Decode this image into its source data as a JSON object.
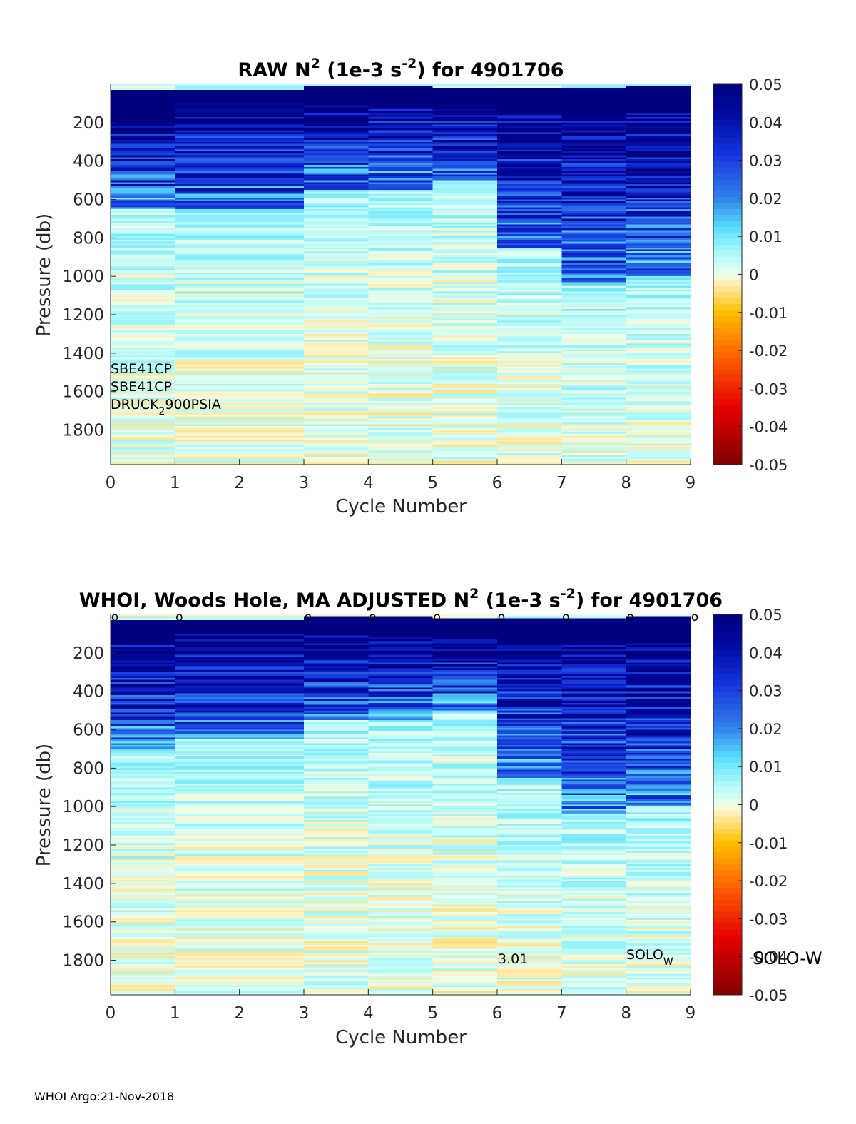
{
  "footer": "WHOI Argo:21-Nov-2018",
  "chart_data": [
    {
      "type": "heatmap",
      "title": {
        "pre": "RAW N",
        "sup1": "2",
        "mid": " (1e-3 s",
        "sup2": "-2",
        "post": ") for 4901706"
      },
      "xlabel": "Cycle Number",
      "ylabel": "Pressure (db)",
      "x_ticks": [
        "0",
        "1",
        "2",
        "3",
        "4",
        "5",
        "6",
        "7",
        "8",
        "9"
      ],
      "y_ticks": [
        "200",
        "400",
        "600",
        "800",
        "1000",
        "1200",
        "1400",
        "1600",
        "1800"
      ],
      "xlim": [
        0,
        9
      ],
      "ylim": [
        1980,
        0
      ],
      "colorbar": {
        "range": [
          -0.05,
          0.05
        ],
        "ticks": [
          "0.05",
          "0.04",
          "0.03",
          "0.02",
          "0.01",
          "0",
          "-0.01",
          "-0.02",
          "-0.03",
          "-0.04",
          "-0.05"
        ]
      },
      "column_edges": [
        0,
        1,
        3,
        4,
        5,
        6,
        7,
        8,
        9
      ],
      "columns": [
        {
          "cycle_start": 0,
          "cycle_end": 1,
          "top_p": 30,
          "mixed_layer_to_p": 150,
          "deep_strat_to_p": 650
        },
        {
          "cycle_start": 1,
          "cycle_end": 3,
          "top_p": 30,
          "mixed_layer_to_p": 100,
          "deep_strat_to_p": 650
        },
        {
          "cycle_start": 3,
          "cycle_end": 4,
          "top_p": 10,
          "mixed_layer_to_p": 110,
          "deep_strat_to_p": 550
        },
        {
          "cycle_start": 4,
          "cycle_end": 5,
          "top_p": 10,
          "mixed_layer_to_p": 110,
          "deep_strat_to_p": 550
        },
        {
          "cycle_start": 5,
          "cycle_end": 6,
          "top_p": 20,
          "mixed_layer_to_p": 130,
          "deep_strat_to_p": 500
        },
        {
          "cycle_start": 6,
          "cycle_end": 7,
          "top_p": 20,
          "mixed_layer_to_p": 150,
          "deep_strat_to_p": 850
        },
        {
          "cycle_start": 7,
          "cycle_end": 8,
          "top_p": 20,
          "mixed_layer_to_p": 160,
          "deep_strat_to_p": 1050
        },
        {
          "cycle_start": 8,
          "cycle_end": 9,
          "top_p": 10,
          "mixed_layer_to_p": 150,
          "deep_strat_to_p": 1000
        }
      ],
      "annotations": [
        {
          "text": "SBE41CP"
        },
        {
          "text": "SBE41CP"
        },
        {
          "text": "DRUCK",
          "sub": "2",
          "rest": "900PSIA"
        }
      ]
    },
    {
      "type": "heatmap",
      "title": {
        "pre": "WHOI, Woods Hole, MA  ADJUSTED N",
        "sup1": "2",
        "mid": " (1e-3 s",
        "sup2": "-2",
        "post": ") for 4901706"
      },
      "xlabel": "Cycle Number",
      "ylabel": "Pressure (db)",
      "x_ticks": [
        "0",
        "1",
        "2",
        "3",
        "4",
        "5",
        "6",
        "7",
        "8",
        "9"
      ],
      "y_ticks": [
        "200",
        "400",
        "600",
        "800",
        "1000",
        "1200",
        "1400",
        "1600",
        "1800"
      ],
      "xlim": [
        0,
        9
      ],
      "ylim": [
        1980,
        0
      ],
      "colorbar": {
        "range": [
          -0.05,
          0.05
        ],
        "ticks": [
          "0.05",
          "0.04",
          "0.03",
          "0.02",
          "0.01",
          "0",
          "-0.01",
          "-0.02",
          "-0.03",
          "-0.04",
          "-0.05"
        ]
      },
      "column_edges": [
        0,
        1,
        3,
        4,
        5,
        6,
        7,
        8,
        9
      ],
      "columns": [
        {
          "cycle_start": 0,
          "cycle_end": 1,
          "top_p": 30,
          "mixed_layer_to_p": 150,
          "deep_strat_to_p": 700
        },
        {
          "cycle_start": 1,
          "cycle_end": 3,
          "top_p": 30,
          "mixed_layer_to_p": 100,
          "deep_strat_to_p": 650
        },
        {
          "cycle_start": 3,
          "cycle_end": 4,
          "top_p": 10,
          "mixed_layer_to_p": 110,
          "deep_strat_to_p": 550
        },
        {
          "cycle_start": 4,
          "cycle_end": 5,
          "top_p": 10,
          "mixed_layer_to_p": 110,
          "deep_strat_to_p": 550
        },
        {
          "cycle_start": 5,
          "cycle_end": 6,
          "top_p": 20,
          "mixed_layer_to_p": 130,
          "deep_strat_to_p": 500
        },
        {
          "cycle_start": 6,
          "cycle_end": 7,
          "top_p": 20,
          "mixed_layer_to_p": 150,
          "deep_strat_to_p": 850
        },
        {
          "cycle_start": 7,
          "cycle_end": 8,
          "top_p": 20,
          "mixed_layer_to_p": 160,
          "deep_strat_to_p": 1050
        },
        {
          "cycle_start": 8,
          "cycle_end": 9,
          "top_p": 10,
          "mixed_layer_to_p": 150,
          "deep_strat_to_p": 1000
        }
      ],
      "qc_marker": "o",
      "qc_marker_cycles": [
        0,
        1,
        3,
        4,
        5,
        6,
        7,
        8,
        9
      ],
      "annotations": [
        {
          "text": "3.01"
        },
        {
          "text": "SOLO",
          "sub": "W"
        },
        {
          "text": "SOLO-W"
        }
      ]
    }
  ]
}
